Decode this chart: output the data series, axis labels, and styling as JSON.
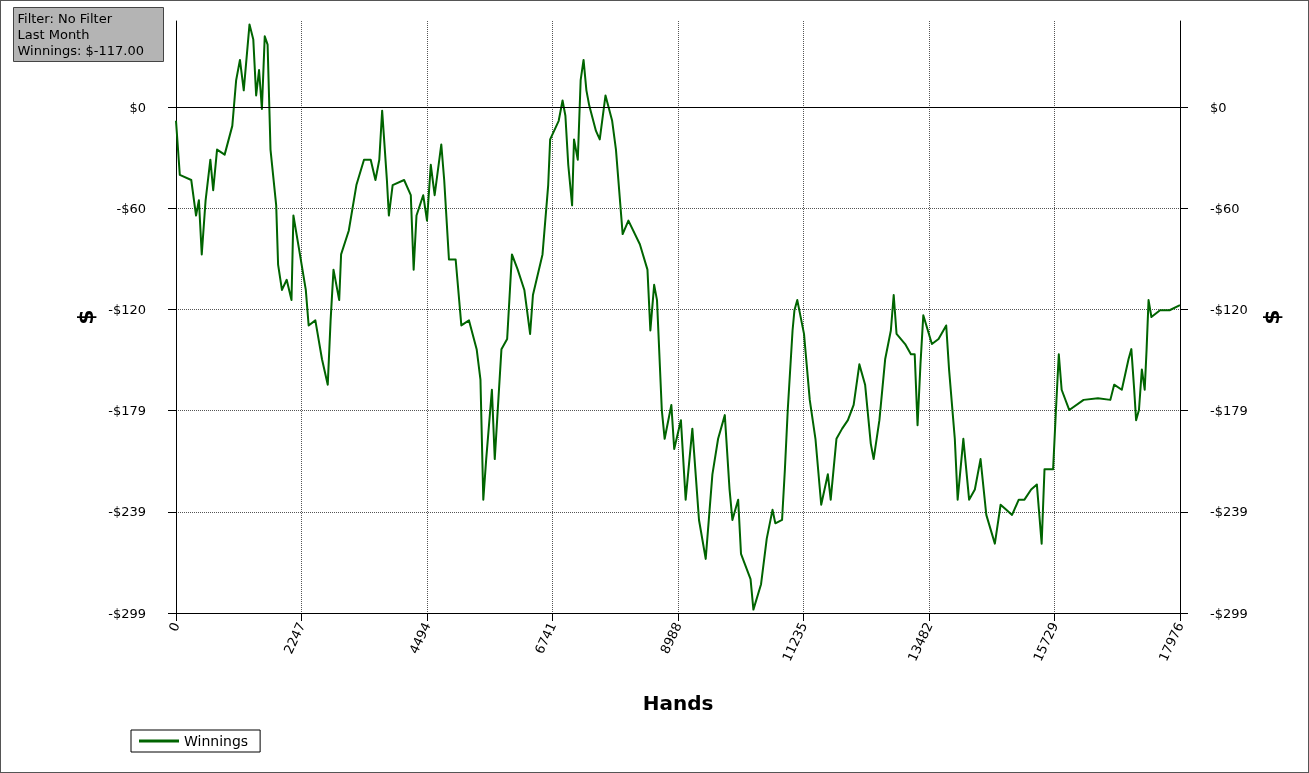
{
  "chart_data": {
    "type": "line",
    "xlabel": "Hands",
    "ylabel": "$",
    "y2label": "$",
    "annotations": [
      "Filter: No Filter",
      "Last Month",
      "Winnings: $-117.00"
    ],
    "xlim": [
      0,
      17976
    ],
    "xticks": [
      0,
      2247,
      4494,
      6741,
      8988,
      11235,
      13482,
      15729,
      17976
    ],
    "ylim": [
      -299,
      51
    ],
    "yticks": [
      {
        "value": 0,
        "label": "$0"
      },
      {
        "value": -59.8,
        "label": "-$60"
      },
      {
        "value": -119.6,
        "label": "-$120"
      },
      {
        "value": -179.4,
        "label": "-$179"
      },
      {
        "value": -239.2,
        "label": "-$239"
      },
      {
        "value": -299,
        "label": "-$299"
      }
    ],
    "y2lim": [
      -299,
      51
    ],
    "y2ticks": [
      {
        "value": 0,
        "label": "$0"
      },
      {
        "value": -59.8,
        "label": "-$60"
      },
      {
        "value": -119.6,
        "label": "-$120"
      },
      {
        "value": -179.4,
        "label": "-$179"
      },
      {
        "value": -239.2,
        "label": "-$239"
      },
      {
        "value": -299,
        "label": "-$299"
      }
    ],
    "grid": true,
    "legend": "bottom left",
    "marker": "none",
    "line_style": "solid",
    "ref_lines": [
      {
        "axis": "y",
        "value": 0,
        "color": "#000000"
      }
    ],
    "series": [
      {
        "name": "Winnings",
        "color": "#006400",
        "x": [
          0,
          68,
          273,
          359,
          410,
          461,
          530,
          615,
          666,
          735,
          871,
          1008,
          1077,
          1145,
          1213,
          1316,
          1384,
          1435,
          1487,
          1538,
          1589,
          1640,
          1692,
          1794,
          1828,
          1897,
          1982,
          2068,
          2102,
          2204,
          2324,
          2375,
          2495,
          2614,
          2717,
          2768,
          2820,
          2922,
          2956,
          3093,
          3230,
          3366,
          3486,
          3571,
          3640,
          3691,
          3776,
          3811,
          3879,
          4084,
          4204,
          4255,
          4306,
          4426,
          4494,
          4562,
          4631,
          4750,
          4802,
          4887,
          5007,
          5109,
          5246,
          5383,
          5451,
          5502,
          5554,
          5656,
          5707,
          5827,
          5929,
          6015,
          6118,
          6237,
          6340,
          6391,
          6562,
          6664,
          6699,
          6852,
          6921,
          6972,
          7023,
          7092,
          7126,
          7194,
          7245,
          7297,
          7348,
          7399,
          7519,
          7587,
          7690,
          7809,
          7877,
          7997,
          8100,
          8305,
          8441,
          8493,
          8561,
          8612,
          8698,
          8749,
          8869,
          8920,
          9040,
          9125,
          9245,
          9364,
          9484,
          9604,
          9706,
          9826,
          9911,
          9962,
          10065,
          10116,
          10287,
          10338,
          10475,
          10577,
          10680,
          10731,
          10851,
          10902,
          10953,
          11039,
          11073,
          11124,
          11244,
          11347,
          11449,
          11552,
          11671,
          11722,
          11825,
          11927,
          12030,
          12133,
          12235,
          12338,
          12440,
          12491,
          12594,
          12697,
          12799,
          12850,
          12901,
          13055,
          13158,
          13226,
          13277,
          13329,
          13380,
          13534,
          13653,
          13790,
          13841,
          13944,
          13995,
          14097,
          14200,
          14303,
          14405,
          14508,
          14661,
          14764,
          14866,
          14969,
          15089,
          15191,
          15311,
          15413,
          15499,
          15550,
          15704,
          15755,
          15806,
          15857,
          15994,
          16250,
          16507,
          16729,
          16797,
          16934,
          17054,
          17105,
          17156,
          17190,
          17241,
          17293,
          17344,
          17378,
          17413,
          17464,
          17618,
          17789,
          17976
        ],
        "values": [
          -8,
          -40,
          -43,
          -64,
          -55,
          -87,
          -55,
          -31,
          -49,
          -25,
          -28,
          -11,
          16,
          28,
          10,
          49,
          40,
          7,
          22,
          -1,
          42,
          37,
          -25,
          -58,
          -93,
          -108,
          -102,
          -114,
          -64,
          -84,
          -108,
          -129,
          -126,
          -149,
          -164,
          -126,
          -96,
          -114,
          -87,
          -73,
          -46,
          -31,
          -31,
          -43,
          -31,
          -2,
          -43,
          -64,
          -46,
          -43,
          -52,
          -96,
          -64,
          -52,
          -67,
          -34,
          -52,
          -22,
          -43,
          -90,
          -90,
          -129,
          -126,
          -143,
          -161,
          -232,
          -208,
          -167,
          -208,
          -143,
          -137,
          -87,
          -96,
          -108,
          -134,
          -111,
          -87,
          -46,
          -19,
          -8,
          4,
          -5,
          -34,
          -58,
          -19,
          -31,
          16,
          28,
          10,
          1,
          -14,
          -19,
          7,
          -8,
          -25,
          -75,
          -67,
          -81,
          -96,
          -132,
          -105,
          -114,
          -179,
          -196,
          -176,
          -202,
          -185,
          -232,
          -190,
          -244,
          -267,
          -217,
          -196,
          -182,
          -226,
          -244,
          -232,
          -264,
          -279,
          -297,
          -282,
          -255,
          -238,
          -246,
          -244,
          -214,
          -179,
          -132,
          -120,
          -114,
          -134,
          -173,
          -196,
          -235,
          -217,
          -232,
          -196,
          -190,
          -185,
          -176,
          -152,
          -164,
          -199,
          -208,
          -185,
          -149,
          -132,
          -111,
          -134,
          -140,
          -146,
          -146,
          -188,
          -152,
          -123,
          -140,
          -137,
          -129,
          -155,
          -196,
          -232,
          -196,
          -232,
          -226,
          -208,
          -241,
          -258,
          -235,
          -238,
          -241,
          -232,
          -232,
          -226,
          -223,
          -258,
          -214,
          -214,
          -179,
          -146,
          -167,
          -179,
          -173,
          -172,
          -173,
          -164,
          -167,
          -149,
          -143,
          -167,
          -185,
          -179,
          -155,
          -167,
          -143,
          -114,
          -124,
          -120,
          -120,
          -117
        ]
      }
    ]
  }
}
